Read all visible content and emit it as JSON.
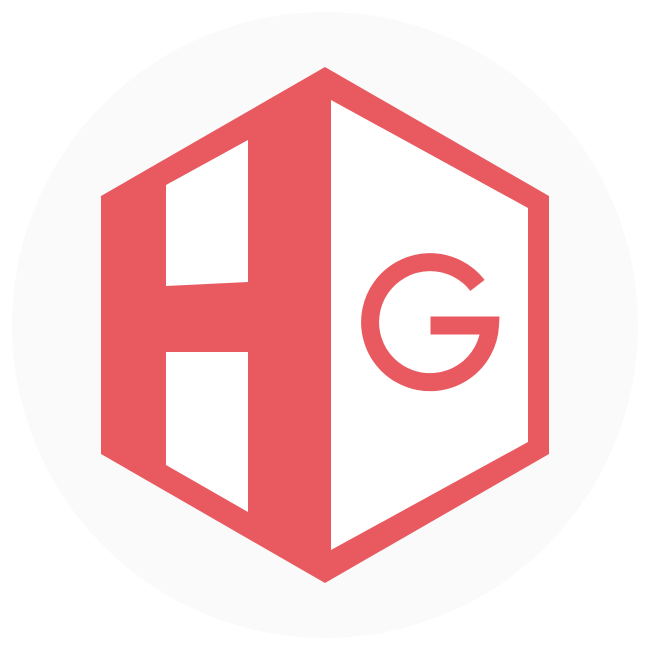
{
  "logo": {
    "letters": "HG",
    "colors": {
      "page_background": "#ffffff",
      "circle_background": "#fafafa",
      "brand": "#e85a60",
      "inner_white": "#ffffff"
    }
  }
}
